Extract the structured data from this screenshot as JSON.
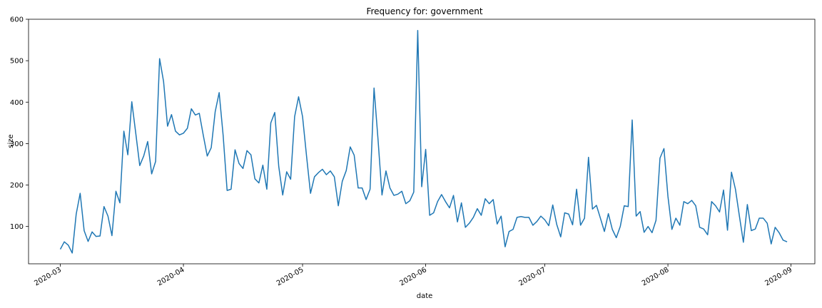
{
  "chart_data": {
    "type": "line",
    "title": "Frequency for: government",
    "xlabel": "date",
    "ylabel": "size",
    "x_start": "2020-03-01",
    "x_end": "2020-08-31",
    "xlim": [
      "2020-02-22",
      "2020-09-07"
    ],
    "ylim": [
      10,
      600
    ],
    "grid": false,
    "line_color": "#1f77b4",
    "y_ticks": [
      100,
      200,
      300,
      400,
      500,
      600
    ],
    "x_ticks": [
      "2020-03-01",
      "2020-04-01",
      "2020-05-01",
      "2020-06-01",
      "2020-07-01",
      "2020-08-01",
      "2020-09-01"
    ],
    "x_tick_labels": [
      "2020-03",
      "2020-04",
      "2020-05",
      "2020-06",
      "2020-07",
      "2020-08",
      "2020-09"
    ],
    "series": [
      {
        "values": [
          45,
          63,
          55,
          36,
          130,
          180,
          90,
          64,
          87,
          76,
          77,
          148,
          125,
          78,
          185,
          157,
          330,
          273,
          401,
          325,
          247,
          270,
          305,
          227,
          257,
          505,
          450,
          342,
          370,
          330,
          321,
          325,
          337,
          384,
          369,
          373,
          320,
          270,
          290,
          377,
          423,
          320,
          187,
          190,
          285,
          252,
          240,
          283,
          273,
          215,
          205,
          248,
          190,
          350,
          375,
          245,
          176,
          232,
          214,
          365,
          413,
          365,
          270,
          180,
          220,
          230,
          238,
          225,
          234,
          220,
          150,
          209,
          235,
          292,
          272,
          193,
          193,
          165,
          190,
          434,
          310,
          176,
          234,
          193,
          175,
          178,
          185,
          155,
          162,
          183,
          573,
          196,
          286,
          127,
          133,
          160,
          177,
          160,
          145,
          175,
          111,
          157,
          98,
          108,
          122,
          143,
          127,
          167,
          155,
          165,
          106,
          125,
          51,
          88,
          93,
          122,
          124,
          122,
          122,
          103,
          112,
          125,
          116,
          102,
          152,
          105,
          75,
          133,
          130,
          104,
          190,
          103,
          120,
          267,
          142,
          151,
          120,
          88,
          131,
          93,
          73,
          100,
          150,
          148,
          357,
          125,
          136,
          86,
          100,
          85,
          115,
          265,
          288,
          173,
          93,
          120,
          103,
          160,
          155,
          163,
          150,
          98,
          94,
          80,
          160,
          150,
          135,
          188,
          91,
          231,
          190,
          125,
          62,
          153,
          90,
          94,
          120,
          120,
          108,
          58,
          98,
          85,
          67,
          63
        ]
      }
    ]
  }
}
